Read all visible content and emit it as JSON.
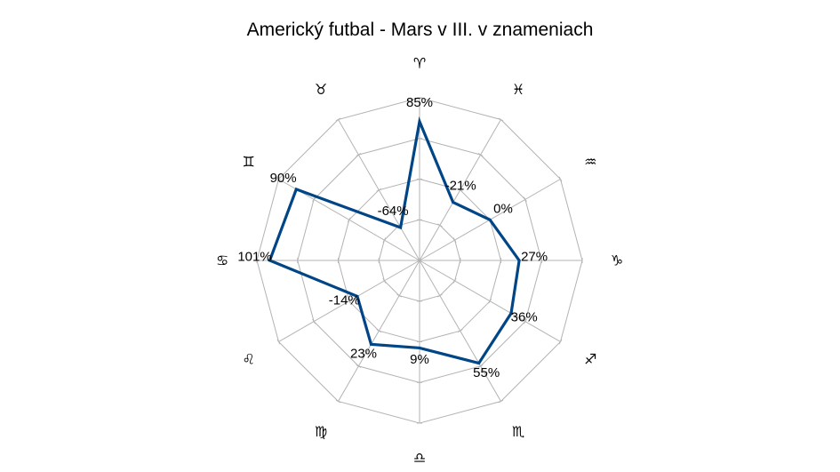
{
  "chart_data": {
    "type": "radar",
    "title": "Americký futbal - Mars v III. v znameniach",
    "categories": [
      "♈",
      "♓",
      "♒",
      "♑",
      "♐",
      "♏",
      "♎",
      "♍",
      "♌",
      "♋",
      "♊",
      "♉"
    ],
    "series": [
      {
        "values": [
          85,
          -21,
          0,
          27,
          36,
          55,
          9,
          23,
          -14,
          101,
          90,
          -64
        ],
        "labels": [
          "85%",
          "-21%",
          "0%",
          "27%",
          "36%",
          "55%",
          "9%",
          "23%",
          "-14%",
          "101%",
          "90%",
          "-64%"
        ]
      }
    ],
    "rlim": [
      -120,
      120
    ],
    "gridlines": [
      -120,
      -60,
      0,
      60,
      120
    ],
    "grid": true,
    "legend": false,
    "colors": {
      "series": "#004586",
      "grid": "#b3b3b3"
    }
  }
}
